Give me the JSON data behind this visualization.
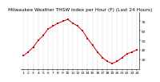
{
  "title": "Milwaukee Weather THSW Index per Hour (F) (Last 24 Hours)",
  "hours": [
    1,
    2,
    3,
    4,
    5,
    6,
    7,
    8,
    9,
    10,
    11,
    12,
    13,
    14,
    15,
    16,
    17,
    18,
    19,
    20,
    21,
    22,
    23,
    24
  ],
  "values": [
    34,
    38,
    43,
    50,
    55,
    62,
    65,
    68,
    70,
    72,
    68,
    65,
    60,
    52,
    45,
    38,
    32,
    28,
    26,
    28,
    32,
    36,
    38,
    40
  ],
  "line_color": "#cc0000",
  "marker_color": "#cc0000",
  "bg_color": "#ffffff",
  "grid_color": "#888888",
  "title_color": "#000000",
  "ylim": [
    20,
    80
  ],
  "yticks": [
    70,
    60,
    50,
    40,
    30
  ],
  "ytick_labels": [
    "70",
    "60",
    "50",
    "40",
    "30"
  ],
  "title_fontsize": 4.2,
  "tick_fontsize": 3.2,
  "linewidth": 0.7,
  "markersize": 1.8
}
